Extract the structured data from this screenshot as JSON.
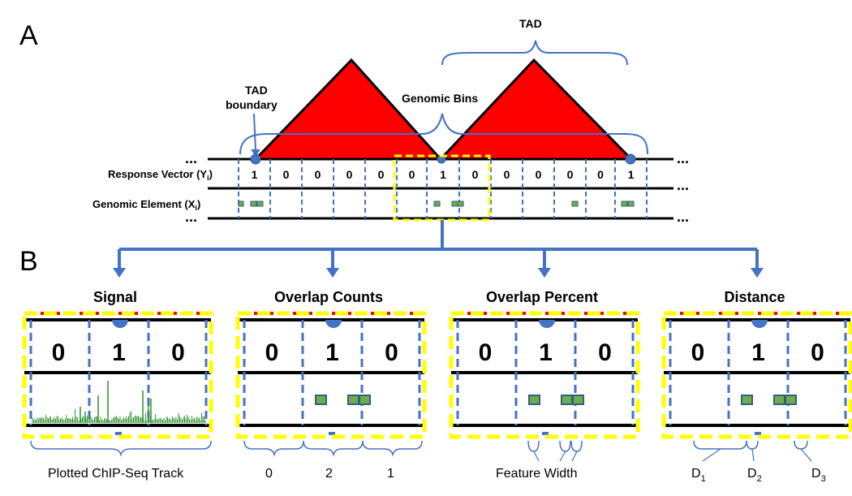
{
  "panel_a": {
    "label": "A",
    "tad_label": "TAD",
    "tad_boundary_label_1": "TAD",
    "tad_boundary_label_2": "boundary",
    "genomic_bins_label": "Genomic Bins",
    "response_vector_label": "Response Vector (Y",
    "response_vector_sub": "i",
    "genomic_element_label": "Genomic Element (X",
    "genomic_element_sub": "i",
    "ellipsis": "...",
    "response_values": [
      "1",
      "0",
      "0",
      "0",
      "0",
      "0",
      "1",
      "0",
      "0",
      "0",
      "0",
      "0",
      "1"
    ]
  },
  "panel_b": {
    "label": "B",
    "panels": [
      {
        "title": "Signal",
        "values": [
          "0",
          "1",
          "0"
        ],
        "caption": "Plotted ChIP-Seq Track"
      },
      {
        "title": "Overlap Counts",
        "values": [
          "0",
          "1",
          "0"
        ],
        "counts": [
          "0",
          "2",
          "1"
        ]
      },
      {
        "title": "Overlap Percent",
        "values": [
          "0",
          "1",
          "0"
        ],
        "caption": "Feature Width"
      },
      {
        "title": "Distance",
        "values": [
          "0",
          "1",
          "0"
        ],
        "distances": [
          "D",
          "D",
          "D"
        ],
        "distance_subs": [
          "1",
          "2",
          "3"
        ]
      }
    ]
  },
  "colors": {
    "tad_fill": "#ff0000",
    "bracket": "#4472c4",
    "dashed_bin": "#4472c4",
    "highlight": "#ffff00",
    "element": "#70ad47",
    "signal": "#3a9a3a"
  }
}
